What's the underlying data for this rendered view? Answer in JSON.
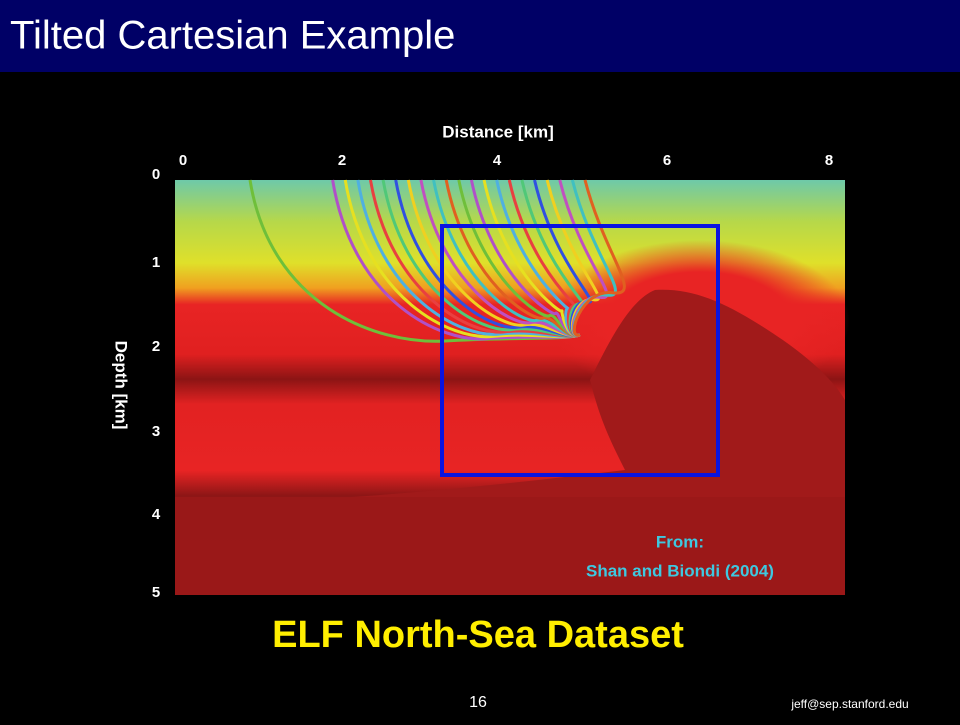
{
  "header": {
    "title": "Tilted Cartesian Example"
  },
  "figure": {
    "x_axis_label": "Distance [km]",
    "x_ticks": [
      0,
      2,
      4,
      6,
      8
    ],
    "y_axis_label": "Depth [km]",
    "y_ticks": [
      0,
      1,
      2,
      3,
      4,
      5
    ],
    "credit": [
      "From:",
      "Shan and Biondi (2004)"
    ]
  },
  "caption": "ELF North-Sea Dataset",
  "footer": {
    "page_number": 16,
    "email": "jeff@sep.stanford.edu"
  }
}
